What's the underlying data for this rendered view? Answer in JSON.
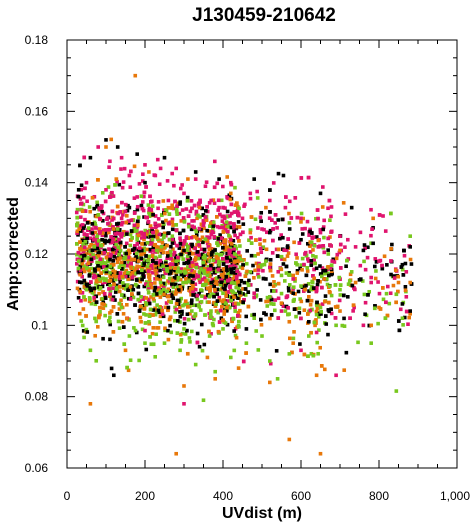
{
  "chart_data": {
    "type": "scatter",
    "title": "J130459-210642",
    "xlabel": "UVdist (m)",
    "ylabel": "Amp:corrected",
    "xlim": [
      0,
      1000
    ],
    "ylim": [
      0.06,
      0.18
    ],
    "x_ticks": [
      0,
      200,
      400,
      600,
      800,
      1000
    ],
    "x_tick_labels": [
      "0",
      "200",
      "400",
      "600",
      "800",
      "1,000"
    ],
    "y_ticks": [
      0.06,
      0.08,
      0.1,
      0.12,
      0.14,
      0.16,
      0.18
    ],
    "y_tick_labels": [
      "0.06",
      "0.08",
      "0.1",
      "0.12",
      "0.14",
      "0.16",
      "0.18"
    ],
    "grid": false,
    "legend": "none",
    "series": [
      {
        "color": "#000000",
        "points": [
          [
            100,
            0.152
          ],
          [
            130,
            0.15
          ],
          [
            180,
            0.148
          ],
          [
            60,
            0.147
          ],
          [
            250,
            0.147
          ],
          [
            330,
            0.143
          ],
          [
            390,
            0.141
          ],
          [
            480,
            0.141
          ],
          [
            555,
            0.142
          ],
          [
            650,
            0.137
          ],
          [
            730,
            0.133
          ],
          [
            785,
            0.123
          ],
          [
            860,
            0.117
          ],
          [
            880,
            0.122
          ],
          [
            860,
            0.106
          ],
          [
            880,
            0.104
          ],
          [
            30,
            0.138
          ],
          [
            160,
            0.133
          ],
          [
            290,
            0.134
          ],
          [
            440,
            0.129
          ],
          [
            520,
            0.126
          ],
          [
            600,
            0.124
          ],
          [
            700,
            0.125
          ],
          [
            200,
            0.14
          ],
          [
            120,
            0.086
          ],
          [
            340,
            0.094
          ],
          [
            460,
            0.099
          ],
          [
            580,
            0.109
          ],
          [
            220,
            0.118
          ],
          [
            90,
            0.124
          ],
          [
            300,
            0.121
          ],
          [
            410,
            0.119
          ],
          [
            510,
            0.113
          ],
          [
            640,
            0.116
          ],
          [
            760,
            0.121
          ],
          [
            170,
            0.11
          ],
          [
            260,
            0.105
          ],
          [
            370,
            0.112
          ],
          [
            480,
            0.103
          ],
          [
            620,
            0.101
          ],
          [
            720,
            0.108
          ]
        ]
      },
      {
        "color": "#e0146e",
        "points": [
          [
            80,
            0.15
          ],
          [
            110,
            0.146
          ],
          [
            140,
            0.147
          ],
          [
            200,
            0.145
          ],
          [
            240,
            0.144
          ],
          [
            280,
            0.144
          ],
          [
            330,
            0.141
          ],
          [
            355,
            0.139
          ],
          [
            420,
            0.14
          ],
          [
            470,
            0.137
          ],
          [
            520,
            0.135
          ],
          [
            560,
            0.133
          ],
          [
            600,
            0.13
          ],
          [
            650,
            0.126
          ],
          [
            700,
            0.125
          ],
          [
            740,
            0.122
          ],
          [
            800,
            0.118
          ],
          [
            870,
            0.115
          ],
          [
            50,
            0.14
          ],
          [
            160,
            0.142
          ],
          [
            300,
            0.137
          ],
          [
            390,
            0.133
          ],
          [
            450,
            0.13
          ],
          [
            500,
            0.127
          ],
          [
            610,
            0.12
          ],
          [
            680,
            0.118
          ],
          [
            720,
            0.124
          ],
          [
            780,
            0.112
          ],
          [
            830,
            0.109
          ],
          [
            870,
            0.108
          ],
          [
            100,
            0.138
          ],
          [
            180,
            0.136
          ],
          [
            260,
            0.135
          ],
          [
            350,
            0.128
          ],
          [
            580,
            0.113
          ],
          [
            640,
            0.098
          ],
          [
            690,
            0.086
          ],
          [
            300,
            0.078
          ],
          [
            140,
            0.13
          ],
          [
            220,
            0.126
          ],
          [
            420,
            0.124
          ],
          [
            480,
            0.109
          ],
          [
            550,
            0.104
          ],
          [
            600,
            0.093
          ],
          [
            330,
            0.11
          ],
          [
            760,
            0.1
          ]
        ]
      },
      {
        "color": "#e8780a",
        "points": [
          [
            175,
            0.17
          ],
          [
            60,
            0.078
          ],
          [
            280,
            0.064
          ],
          [
            570,
            0.068
          ],
          [
            650,
            0.064
          ],
          [
            100,
            0.15
          ],
          [
            210,
            0.143
          ],
          [
            310,
            0.141
          ],
          [
            420,
            0.137
          ],
          [
            510,
            0.133
          ],
          [
            600,
            0.129
          ],
          [
            700,
            0.121
          ],
          [
            785,
            0.13
          ],
          [
            850,
            0.112
          ],
          [
            880,
            0.112
          ],
          [
            40,
            0.132
          ],
          [
            120,
            0.127
          ],
          [
            230,
            0.122
          ],
          [
            330,
            0.119
          ],
          [
            450,
            0.116
          ],
          [
            530,
            0.111
          ],
          [
            620,
            0.108
          ],
          [
            700,
            0.104
          ],
          [
            780,
            0.1
          ],
          [
            90,
            0.106
          ],
          [
            190,
            0.101
          ],
          [
            260,
            0.096
          ],
          [
            360,
            0.091
          ],
          [
            440,
            0.088
          ],
          [
            520,
            0.084
          ],
          [
            580,
            0.095
          ],
          [
            640,
            0.086
          ],
          [
            150,
            0.093
          ],
          [
            300,
            0.083
          ],
          [
            380,
            0.085
          ],
          [
            230,
            0.113
          ],
          [
            410,
            0.105
          ],
          [
            490,
            0.12
          ],
          [
            570,
            0.101
          ],
          [
            660,
            0.113
          ],
          [
            740,
            0.112
          ],
          [
            800,
            0.105
          ],
          [
            120,
            0.117
          ],
          [
            340,
            0.133
          ],
          [
            470,
            0.126
          ],
          [
            270,
            0.129
          ]
        ]
      },
      {
        "color": "#78c81e",
        "points": [
          [
            880,
            0.125
          ],
          [
            860,
            0.102
          ],
          [
            780,
            0.095
          ],
          [
            730,
            0.115
          ],
          [
            700,
            0.11
          ],
          [
            650,
            0.105
          ],
          [
            620,
            0.097
          ],
          [
            570,
            0.092
          ],
          [
            520,
            0.09
          ],
          [
            460,
            0.095
          ],
          [
            420,
            0.091
          ],
          [
            380,
            0.087
          ],
          [
            330,
            0.089
          ],
          [
            290,
            0.093
          ],
          [
            250,
            0.095
          ],
          [
            200,
            0.095
          ],
          [
            160,
            0.097
          ],
          [
            110,
            0.101
          ],
          [
            60,
            0.093
          ],
          [
            30,
            0.118
          ],
          [
            70,
            0.122
          ],
          [
            100,
            0.113
          ],
          [
            150,
            0.119
          ],
          [
            190,
            0.108
          ],
          [
            240,
            0.112
          ],
          [
            280,
            0.118
          ],
          [
            320,
            0.104
          ],
          [
            360,
            0.114
          ],
          [
            400,
            0.109
          ],
          [
            440,
            0.106
          ],
          [
            480,
            0.102
          ],
          [
            520,
            0.108
          ],
          [
            560,
            0.104
          ],
          [
            600,
            0.111
          ],
          [
            640,
            0.103
          ],
          [
            690,
            0.1
          ],
          [
            80,
            0.131
          ],
          [
            130,
            0.127
          ],
          [
            180,
            0.124
          ],
          [
            230,
            0.121
          ],
          [
            270,
            0.125
          ],
          [
            310,
            0.122
          ],
          [
            350,
            0.119
          ],
          [
            390,
            0.117
          ],
          [
            430,
            0.12
          ],
          [
            470,
            0.115
          ],
          [
            510,
            0.118
          ],
          [
            550,
            0.114
          ],
          [
            590,
            0.117
          ],
          [
            630,
            0.112
          ],
          [
            670,
            0.12
          ],
          [
            50,
            0.11
          ],
          [
            140,
            0.105
          ],
          [
            210,
            0.101
          ],
          [
            300,
            0.099
          ],
          [
            400,
            0.099
          ],
          [
            500,
            0.097
          ],
          [
            540,
            0.085
          ],
          [
            350,
            0.079
          ]
        ]
      }
    ]
  }
}
